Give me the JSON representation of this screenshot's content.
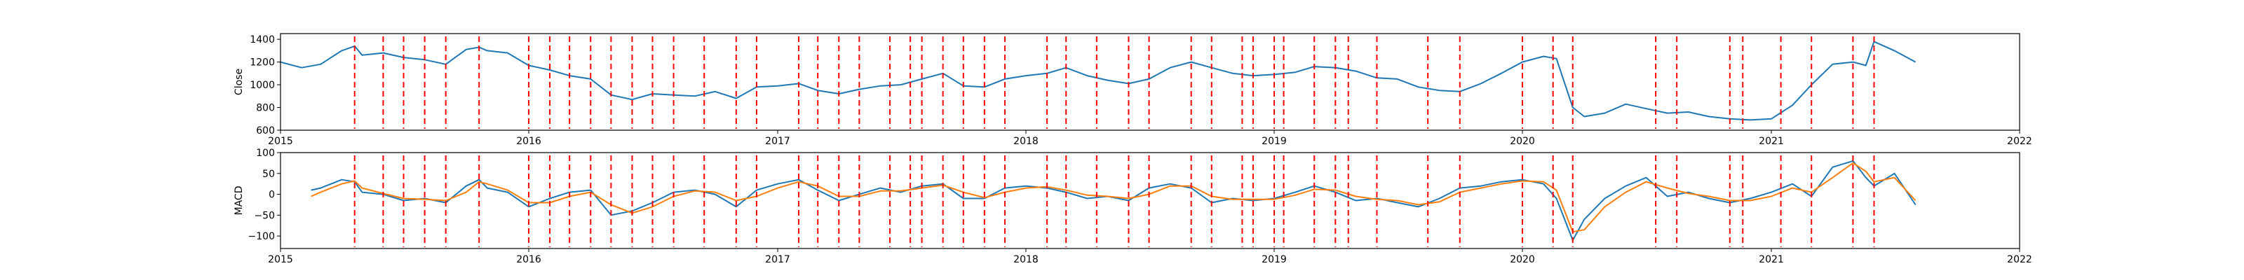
{
  "chart_data": [
    {
      "type": "line",
      "ylabel": "Close",
      "xlabel": "",
      "xlim": [
        "2015-01-01",
        "2022-01-01"
      ],
      "ylim": [
        600,
        1450
      ],
      "xticks": [
        "2015",
        "2016",
        "2017",
        "2018",
        "2019",
        "2020",
        "2021",
        "2022"
      ],
      "yticks": [
        "600",
        "800",
        "1000",
        "1200",
        "1400"
      ],
      "grid": false,
      "series": [
        {
          "color": "#1f77b4",
          "x": [
            "2015-01-01",
            "2015-02-01",
            "2015-03-01",
            "2015-04-01",
            "2015-04-20",
            "2015-05-01",
            "2015-06-01",
            "2015-07-01",
            "2015-08-01",
            "2015-09-01",
            "2015-10-01",
            "2015-10-20",
            "2015-11-01",
            "2015-12-01",
            "2016-01-01",
            "2016-02-01",
            "2016-03-01",
            "2016-04-01",
            "2016-05-01",
            "2016-06-01",
            "2016-07-01",
            "2016-08-01",
            "2016-09-01",
            "2016-10-01",
            "2016-11-01",
            "2016-12-01",
            "2017-01-01",
            "2017-02-01",
            "2017-03-01",
            "2017-04-01",
            "2017-05-01",
            "2017-06-01",
            "2017-07-01",
            "2017-08-01",
            "2017-09-01",
            "2017-10-01",
            "2017-11-01",
            "2017-12-01",
            "2018-01-01",
            "2018-02-01",
            "2018-03-01",
            "2018-04-01",
            "2018-05-01",
            "2018-06-01",
            "2018-07-01",
            "2018-08-01",
            "2018-09-01",
            "2018-10-01",
            "2018-11-01",
            "2018-12-01",
            "2019-01-01",
            "2019-02-01",
            "2019-03-01",
            "2019-04-01",
            "2019-05-01",
            "2019-06-01",
            "2019-07-01",
            "2019-08-01",
            "2019-09-01",
            "2019-10-01",
            "2019-11-01",
            "2019-12-01",
            "2020-01-01",
            "2020-02-01",
            "2020-02-20",
            "2020-03-15",
            "2020-04-01",
            "2020-05-01",
            "2020-06-01",
            "2020-07-01",
            "2020-08-01",
            "2020-09-01",
            "2020-10-01",
            "2020-11-01",
            "2020-12-01",
            "2021-01-01",
            "2021-02-01",
            "2021-03-01",
            "2021-04-01",
            "2021-05-01",
            "2021-05-20",
            "2021-06-01",
            "2021-07-01",
            "2021-08-01"
          ],
          "values": [
            1200,
            1150,
            1180,
            1300,
            1340,
            1260,
            1280,
            1240,
            1220,
            1180,
            1310,
            1330,
            1300,
            1280,
            1170,
            1130,
            1080,
            1050,
            910,
            870,
            920,
            910,
            900,
            940,
            880,
            980,
            990,
            1010,
            950,
            920,
            960,
            990,
            1000,
            1050,
            1100,
            990,
            980,
            1050,
            1080,
            1100,
            1150,
            1080,
            1040,
            1010,
            1050,
            1150,
            1200,
            1150,
            1100,
            1080,
            1090,
            1110,
            1160,
            1150,
            1120,
            1060,
            1050,
            980,
            950,
            940,
            1010,
            1100,
            1200,
            1250,
            1230,
            800,
            720,
            750,
            830,
            790,
            750,
            760,
            720,
            700,
            690,
            700,
            820,
            1000,
            1180,
            1200,
            1170,
            1380,
            1300,
            1200
          ]
        }
      ]
    },
    {
      "type": "line",
      "ylabel": "MACD",
      "xlabel": "",
      "xlim": [
        "2015-01-01",
        "2022-01-01"
      ],
      "ylim": [
        -130,
        100
      ],
      "xticks": [
        "2015",
        "2016",
        "2017",
        "2018",
        "2019",
        "2020",
        "2021",
        "2022"
      ],
      "yticks": [
        "-100",
        "-50",
        "0",
        "50",
        "100"
      ],
      "grid": false,
      "series": [
        {
          "color": "#1f77b4",
          "x": [
            "2015-02-15",
            "2015-03-01",
            "2015-04-01",
            "2015-04-20",
            "2015-05-01",
            "2015-06-01",
            "2015-07-01",
            "2015-08-01",
            "2015-09-01",
            "2015-10-01",
            "2015-10-20",
            "2015-11-01",
            "2015-12-01",
            "2016-01-01",
            "2016-02-01",
            "2016-03-01",
            "2016-04-01",
            "2016-05-01",
            "2016-06-01",
            "2016-07-01",
            "2016-08-01",
            "2016-09-01",
            "2016-10-01",
            "2016-11-01",
            "2016-12-01",
            "2017-01-01",
            "2017-02-01",
            "2017-03-01",
            "2017-04-01",
            "2017-05-01",
            "2017-06-01",
            "2017-07-01",
            "2017-08-01",
            "2017-09-01",
            "2017-10-01",
            "2017-11-01",
            "2017-12-01",
            "2018-01-01",
            "2018-02-01",
            "2018-03-01",
            "2018-04-01",
            "2018-05-01",
            "2018-06-01",
            "2018-07-01",
            "2018-08-01",
            "2018-09-01",
            "2018-10-01",
            "2018-11-01",
            "2018-12-01",
            "2019-01-01",
            "2019-02-01",
            "2019-03-01",
            "2019-04-01",
            "2019-05-01",
            "2019-06-01",
            "2019-07-01",
            "2019-08-01",
            "2019-09-01",
            "2019-10-01",
            "2019-11-01",
            "2019-12-01",
            "2020-01-01",
            "2020-02-01",
            "2020-02-20",
            "2020-03-15",
            "2020-04-01",
            "2020-05-01",
            "2020-06-01",
            "2020-07-01",
            "2020-08-01",
            "2020-09-01",
            "2020-10-01",
            "2020-11-01",
            "2020-12-01",
            "2021-01-01",
            "2021-02-01",
            "2021-03-01",
            "2021-04-01",
            "2021-05-01",
            "2021-05-20",
            "2021-06-01",
            "2021-07-01",
            "2021-08-01"
          ],
          "values": [
            10,
            15,
            35,
            30,
            5,
            0,
            -15,
            -10,
            -20,
            20,
            35,
            15,
            5,
            -30,
            -10,
            5,
            10,
            -50,
            -40,
            -20,
            5,
            10,
            0,
            -30,
            10,
            25,
            35,
            10,
            -15,
            0,
            15,
            5,
            20,
            25,
            -10,
            -10,
            15,
            20,
            15,
            5,
            -10,
            -5,
            -15,
            15,
            25,
            15,
            -20,
            -10,
            -15,
            -10,
            5,
            20,
            5,
            -15,
            -10,
            -20,
            -30,
            -10,
            15,
            20,
            30,
            35,
            25,
            -10,
            -110,
            -60,
            -10,
            20,
            40,
            -5,
            5,
            -10,
            -20,
            -10,
            5,
            25,
            -5,
            65,
            80,
            40,
            20,
            50,
            -25
          ]
        },
        {
          "color": "#ff7f0e",
          "x": [
            "2015-02-15",
            "2015-03-01",
            "2015-04-01",
            "2015-04-20",
            "2015-05-01",
            "2015-06-01",
            "2015-07-01",
            "2015-08-01",
            "2015-09-01",
            "2015-10-01",
            "2015-10-20",
            "2015-11-01",
            "2015-12-01",
            "2016-01-01",
            "2016-02-01",
            "2016-03-01",
            "2016-04-01",
            "2016-05-01",
            "2016-06-01",
            "2016-07-01",
            "2016-08-01",
            "2016-09-01",
            "2016-10-01",
            "2016-11-01",
            "2016-12-01",
            "2017-01-01",
            "2017-02-01",
            "2017-03-01",
            "2017-04-01",
            "2017-05-01",
            "2017-06-01",
            "2017-07-01",
            "2017-08-01",
            "2017-09-01",
            "2017-10-01",
            "2017-11-01",
            "2017-12-01",
            "2018-01-01",
            "2018-02-01",
            "2018-03-01",
            "2018-04-01",
            "2018-05-01",
            "2018-06-01",
            "2018-07-01",
            "2018-08-01",
            "2018-09-01",
            "2018-10-01",
            "2018-11-01",
            "2018-12-01",
            "2019-01-01",
            "2019-02-01",
            "2019-03-01",
            "2019-04-01",
            "2019-05-01",
            "2019-06-01",
            "2019-07-01",
            "2019-08-01",
            "2019-09-01",
            "2019-10-01",
            "2019-11-01",
            "2019-12-01",
            "2020-01-01",
            "2020-02-01",
            "2020-02-20",
            "2020-03-15",
            "2020-04-01",
            "2020-05-01",
            "2020-06-01",
            "2020-07-01",
            "2020-08-01",
            "2020-09-01",
            "2020-10-01",
            "2020-11-01",
            "2020-12-01",
            "2021-01-01",
            "2021-02-01",
            "2021-03-01",
            "2021-04-01",
            "2021-05-01",
            "2021-05-20",
            "2021-06-01",
            "2021-07-01",
            "2021-08-01"
          ],
          "values": [
            -5,
            5,
            25,
            32,
            15,
            2,
            -10,
            -12,
            -15,
            5,
            30,
            25,
            10,
            -20,
            -20,
            -5,
            5,
            -25,
            -45,
            -30,
            -5,
            8,
            5,
            -15,
            -5,
            15,
            30,
            20,
            -5,
            -5,
            8,
            8,
            15,
            22,
            5,
            -8,
            5,
            15,
            18,
            10,
            -2,
            -5,
            -10,
            0,
            20,
            20,
            -5,
            -12,
            -12,
            -12,
            -2,
            12,
            10,
            -5,
            -12,
            -15,
            -25,
            -18,
            5,
            15,
            25,
            32,
            30,
            10,
            -90,
            -85,
            -30,
            5,
            30,
            15,
            2,
            -5,
            -15,
            -15,
            -5,
            15,
            5,
            40,
            75,
            55,
            30,
            40,
            -15
          ]
        }
      ]
    }
  ],
  "vertical_markers": {
    "color": "#ff0000",
    "dates": [
      "2015-04-20",
      "2015-06-01",
      "2015-07-01",
      "2015-08-01",
      "2015-09-01",
      "2015-10-20",
      "2016-01-01",
      "2016-02-01",
      "2016-03-01",
      "2016-04-01",
      "2016-05-01",
      "2016-06-01",
      "2016-07-01",
      "2016-08-01",
      "2016-09-15",
      "2016-11-01",
      "2016-12-01",
      "2017-02-01",
      "2017-03-01",
      "2017-04-01",
      "2017-05-01",
      "2017-06-15",
      "2017-07-15",
      "2017-08-01",
      "2017-09-01",
      "2017-10-01",
      "2017-11-01",
      "2017-12-01",
      "2018-02-01",
      "2018-03-01",
      "2018-04-15",
      "2018-06-01",
      "2018-07-01",
      "2018-09-01",
      "2018-10-01",
      "2018-11-15",
      "2018-12-01",
      "2019-01-01",
      "2019-01-15",
      "2019-03-01",
      "2019-04-01",
      "2019-04-20",
      "2019-06-01",
      "2019-08-15",
      "2019-10-01",
      "2020-01-01",
      "2020-02-15",
      "2020-03-15",
      "2020-07-15",
      "2020-08-15",
      "2020-11-01",
      "2020-11-20",
      "2021-01-15",
      "2021-03-01",
      "2021-05-01",
      "2021-06-01"
    ]
  }
}
